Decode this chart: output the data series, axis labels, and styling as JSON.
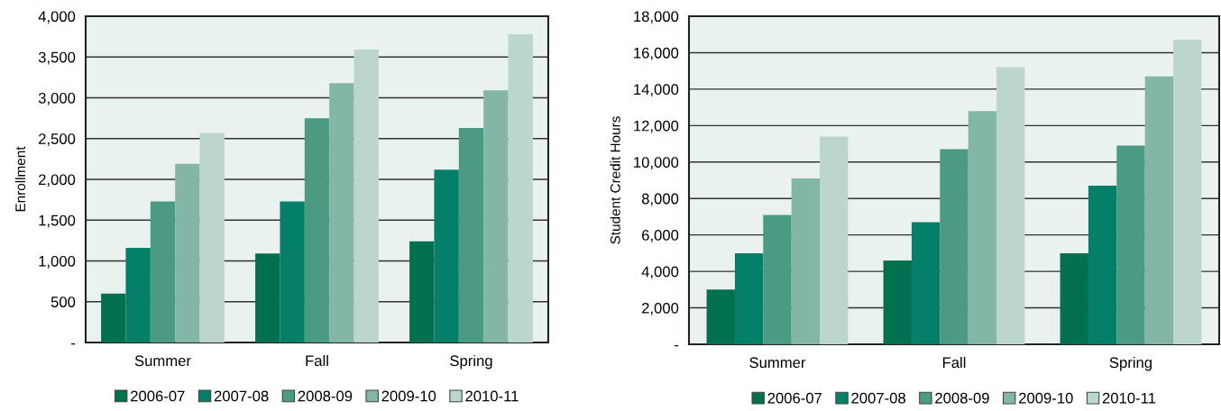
{
  "chart_data": [
    {
      "type": "bar",
      "ylabel": "Enrollment",
      "categories": [
        "Summer",
        "Fall",
        "Spring"
      ],
      "series": [
        {
          "name": "2006-07",
          "color": "#00704f",
          "values": [
            600,
            1090,
            1240
          ]
        },
        {
          "name": "2007-08",
          "color": "#04806a",
          "values": [
            1160,
            1730,
            2120
          ]
        },
        {
          "name": "2008-09",
          "color": "#4a9a84",
          "values": [
            1730,
            2750,
            2630
          ]
        },
        {
          "name": "2009-10",
          "color": "#83b6a7",
          "values": [
            2190,
            3180,
            3090
          ]
        },
        {
          "name": "2010-11",
          "color": "#bad6ce",
          "values": [
            2570,
            3590,
            3780
          ]
        }
      ],
      "ylim": [
        0,
        4000
      ],
      "yticks": [
        {
          "value": 0,
          "label": "-"
        },
        {
          "value": 500,
          "label": "500"
        },
        {
          "value": 1000,
          "label": "1,000"
        },
        {
          "value": 1500,
          "label": "1,500"
        },
        {
          "value": 2000,
          "label": "2,000"
        },
        {
          "value": 2500,
          "label": "2,500"
        },
        {
          "value": 3000,
          "label": "3,000"
        },
        {
          "value": 3500,
          "label": "3,500"
        },
        {
          "value": 4000,
          "label": "4,000"
        }
      ],
      "grid": "y",
      "legend": "bottom"
    },
    {
      "type": "bar",
      "ylabel": "Student Credit Hours",
      "categories": [
        "Summer",
        "Fall",
        "Spring"
      ],
      "series": [
        {
          "name": "2006-07",
          "color": "#00704f",
          "values": [
            3000,
            4600,
            5000
          ]
        },
        {
          "name": "2007-08",
          "color": "#04806a",
          "values": [
            5000,
            6700,
            8700
          ]
        },
        {
          "name": "2008-09",
          "color": "#4a9a84",
          "values": [
            7100,
            10700,
            10900
          ]
        },
        {
          "name": "2009-10",
          "color": "#83b6a7",
          "values": [
            9100,
            12800,
            14700
          ]
        },
        {
          "name": "2010-11",
          "color": "#bad6ce",
          "values": [
            11400,
            15200,
            16700
          ]
        }
      ],
      "ylim": [
        0,
        18000
      ],
      "yticks": [
        {
          "value": 0,
          "label": "-"
        },
        {
          "value": 2000,
          "label": "2,000"
        },
        {
          "value": 4000,
          "label": "4,000"
        },
        {
          "value": 6000,
          "label": "6,000"
        },
        {
          "value": 8000,
          "label": "8,000"
        },
        {
          "value": 10000,
          "label": "10,000"
        },
        {
          "value": 12000,
          "label": "12,000"
        },
        {
          "value": 14000,
          "label": "14,000"
        },
        {
          "value": 16000,
          "label": "16,000"
        },
        {
          "value": 18000,
          "label": "18,000"
        }
      ],
      "grid": "y",
      "legend": "bottom"
    }
  ]
}
